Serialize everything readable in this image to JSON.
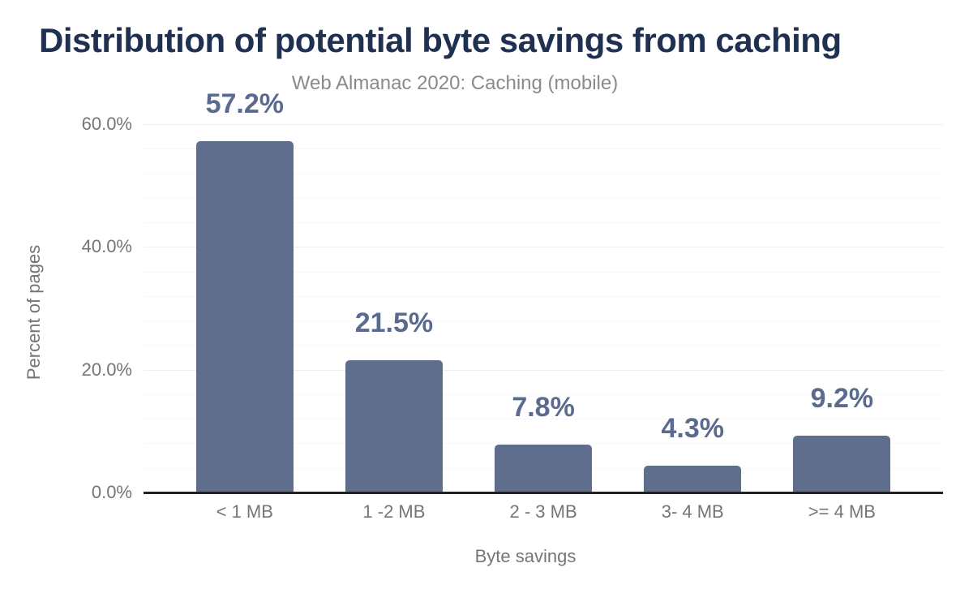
{
  "chart_data": {
    "type": "bar",
    "title": "Distribution of potential byte savings from caching",
    "subtitle": "Web Almanac 2020: Caching (mobile)",
    "xlabel": "Byte savings",
    "ylabel": "Percent of pages",
    "categories": [
      "< 1 MB",
      "1 -2 MB",
      "2 - 3 MB",
      "3- 4 MB",
      ">= 4 MB"
    ],
    "values": [
      57.2,
      21.5,
      7.8,
      4.3,
      9.2
    ],
    "value_labels": [
      "57.2%",
      "21.5%",
      "7.8%",
      "4.3%",
      "9.2%"
    ],
    "ylim": [
      0,
      60
    ],
    "yticks": [
      {
        "value": 0,
        "label": "0.0%"
      },
      {
        "value": 20,
        "label": "20.0%"
      },
      {
        "value": 40,
        "label": "40.0%"
      },
      {
        "value": 60,
        "label": "60.0%"
      }
    ],
    "major_grid_step": 20,
    "minor_grid_step": 4,
    "grid": "horizontal, major and minor lines",
    "legend": "none",
    "colors": {
      "background": "#ffffff",
      "title": "#1f3050",
      "subtitle": "#8a8a8a",
      "bar": "#5f6e8c",
      "data_label": "#5a6b8f",
      "axis_text": "#757575",
      "axis_line": "#212121",
      "grid_major": "#efefef",
      "grid_minor": "#f8f8f8"
    }
  }
}
